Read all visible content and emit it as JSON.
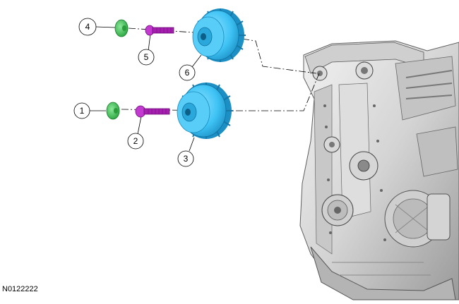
{
  "figure": {
    "id": "N0122222",
    "callouts": [
      {
        "number": "1"
      },
      {
        "number": "2"
      },
      {
        "number": "3"
      },
      {
        "number": "4"
      },
      {
        "number": "5"
      },
      {
        "number": "6"
      }
    ]
  },
  "colors": {
    "sprocket": "#3ec3f5",
    "sprocket_dark": "#1c8fc4",
    "bolt": "#a61fb0",
    "plug": "#33c24a",
    "engine_light": "#e6e6e6",
    "engine_mid": "#b9b9b9",
    "engine_dark": "#6d6d6d",
    "line": "#000000"
  }
}
